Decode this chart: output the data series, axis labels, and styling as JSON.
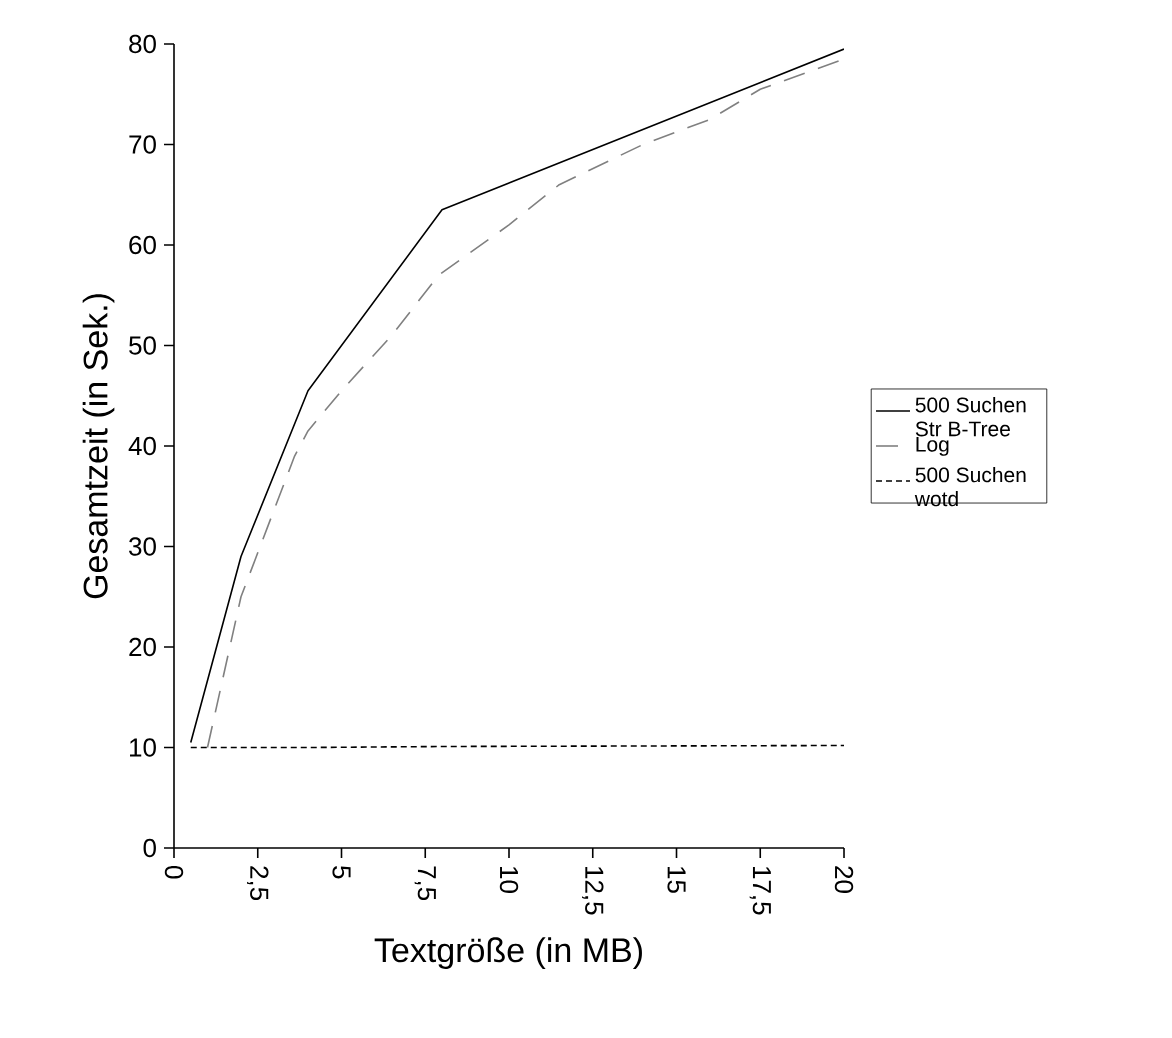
{
  "chart_data": {
    "type": "line",
    "xlabel": "Textgröße (in MB)",
    "ylabel": "Gesamtzeit (in Sek.)",
    "xlim": [
      0,
      20
    ],
    "ylim": [
      0,
      80
    ],
    "xticks": [
      0,
      {
        "value": 2.5,
        "label": "2,5"
      },
      5,
      {
        "value": 7.5,
        "label": "7,5"
      },
      10,
      {
        "value": 12.5,
        "label": "12,5"
      },
      15,
      {
        "value": 17.5,
        "label": "17,5"
      },
      20
    ],
    "yticks": [
      0,
      10,
      20,
      30,
      40,
      50,
      60,
      70,
      80
    ],
    "grid": false,
    "legend": "right",
    "marker": "none",
    "series": [
      {
        "name": "500 Suchen Str B-Tree",
        "color": "#000000",
        "line_style": "solid",
        "x": [
          0.5,
          2,
          4,
          8,
          20
        ],
        "values": [
          10.5,
          29,
          45.5,
          63.5,
          79.5
        ]
      },
      {
        "name": "Log",
        "color": "#808080",
        "line_style": "dashed",
        "x": [
          1,
          1.5,
          2,
          2.8,
          3.6,
          4,
          5,
          6.5,
          7.9,
          10,
          11.5,
          14,
          16,
          17.5,
          20
        ],
        "values": [
          10,
          17.5,
          25,
          32,
          39,
          41.5,
          45.5,
          51,
          57,
          62,
          66,
          70,
          72.5,
          75.5,
          78.5
        ]
      },
      {
        "name": "500 Suchen wotd",
        "color": "#000000",
        "line_style": "dotted",
        "x": [
          0.5,
          2,
          4,
          8,
          20
        ],
        "values": [
          10,
          10,
          10,
          10.1,
          10.2
        ]
      }
    ]
  }
}
